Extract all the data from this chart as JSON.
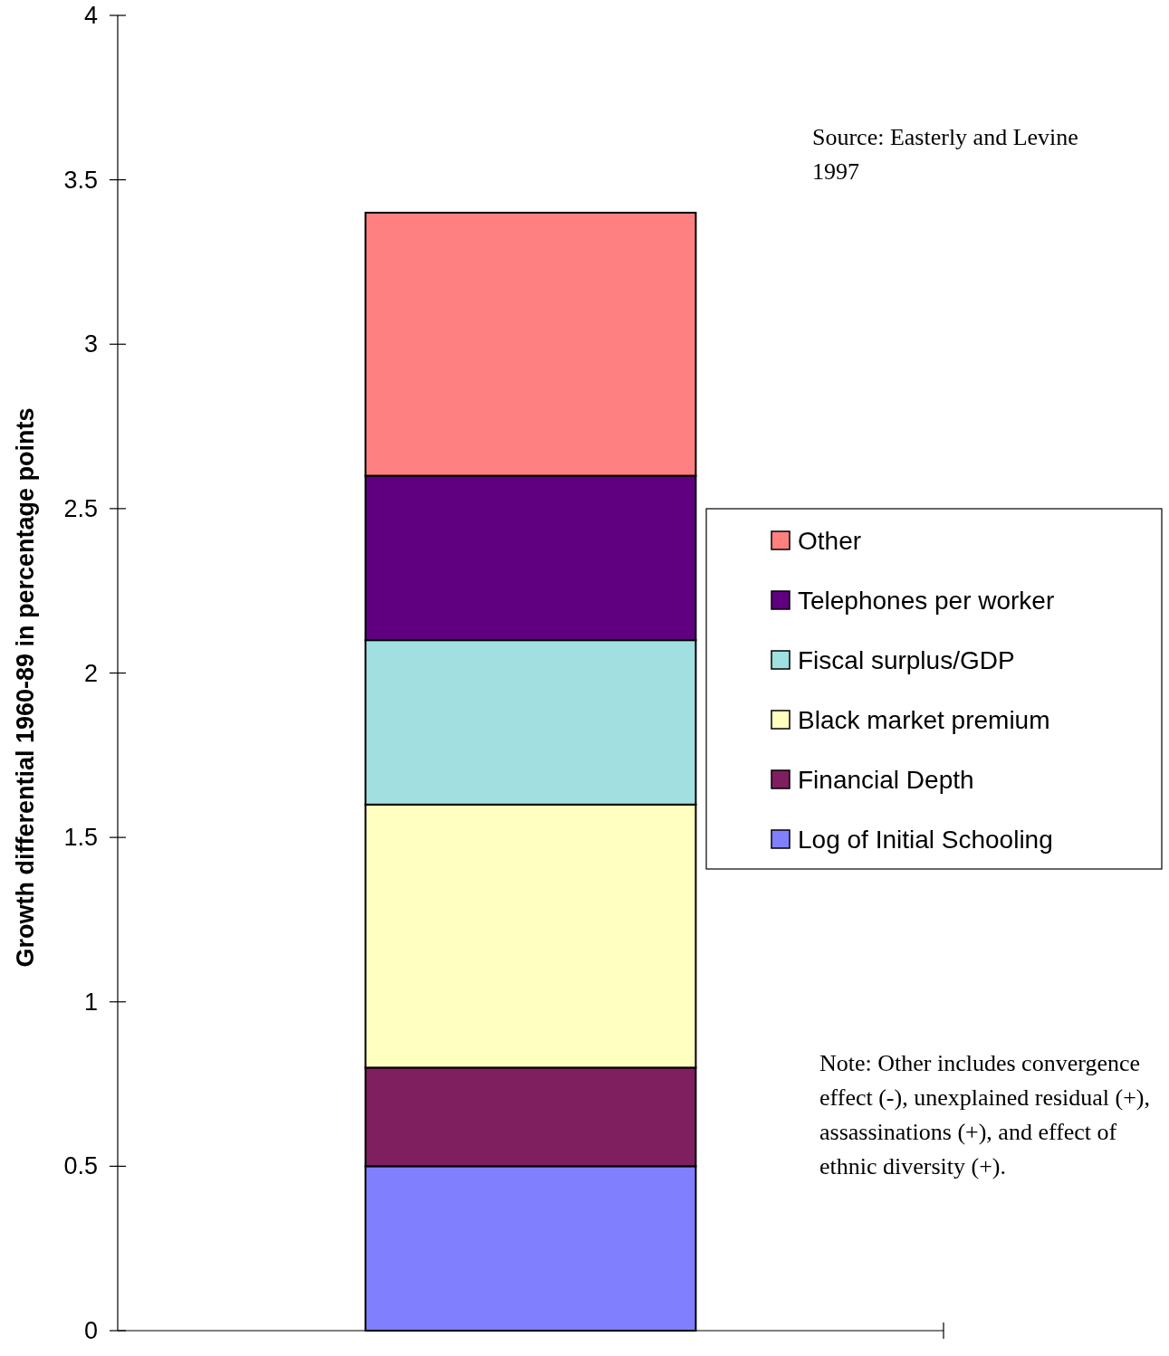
{
  "chart_data": {
    "type": "bar",
    "stacked": true,
    "ylabel": "Growth differential 1960-89 in percentage points",
    "categories": [
      null
    ],
    "series": [
      {
        "name": "Log of Initial Schooling",
        "color": "#8080ff",
        "values": [
          0.5
        ]
      },
      {
        "name": "Financial Depth",
        "color": "#7f1f5f",
        "values": [
          0.3
        ]
      },
      {
        "name": "Black market premium",
        "color": "#ffffc0",
        "values": [
          0.8
        ]
      },
      {
        "name": "Fiscal surplus/GDP",
        "color": "#a0e0e0",
        "values": [
          0.5
        ]
      },
      {
        "name": "Telephones per worker",
        "color": "#600080",
        "values": [
          0.5
        ]
      },
      {
        "name": "Other",
        "color": "#ff8080",
        "values": [
          0.8
        ]
      }
    ],
    "ylim": [
      0,
      4
    ],
    "yticks": [
      0,
      0.5,
      1,
      1.5,
      2,
      2.5,
      3,
      3.5,
      4
    ],
    "legend": "right",
    "annotations": [
      "Source: Easterly and Levine 1997",
      "Note: Other includes convergence effect (-), unexplained residual (+), assassinations (+), and effect of ethnic diversity  (+)."
    ]
  }
}
